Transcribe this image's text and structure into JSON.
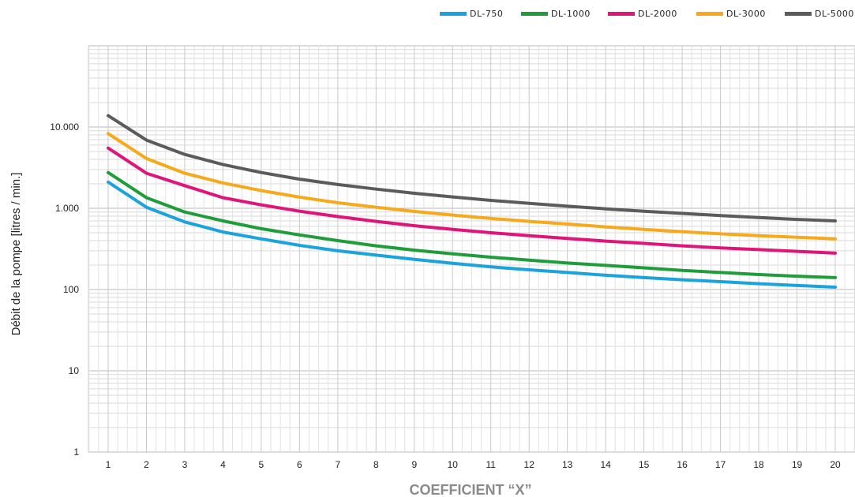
{
  "chart_data": {
    "type": "line",
    "title": "",
    "xlabel": "COEFFICIENT “X”",
    "ylabel": "Débit de la pompe [litres / min.]",
    "y_scale": "log",
    "ylim": [
      1,
      100000
    ],
    "xlim": [
      1,
      20
    ],
    "grid": true,
    "legend_position": "top-right",
    "x": [
      1,
      2,
      3,
      4,
      5,
      6,
      7,
      8,
      9,
      10,
      11,
      12,
      13,
      14,
      15,
      16,
      17,
      18,
      19,
      20
    ],
    "x_tick_labels": [
      "1",
      "2",
      "3",
      "4",
      "5",
      "6",
      "7",
      "8",
      "9",
      "10",
      "11",
      "12",
      "13",
      "14",
      "15",
      "16",
      "17",
      "18",
      "19",
      "20"
    ],
    "y_ticks": [
      1,
      10,
      100,
      1000,
      10000
    ],
    "y_tick_labels": [
      "1",
      "10",
      "100",
      "1.000",
      "10.000"
    ],
    "series": [
      {
        "name": "DL-750",
        "color": "#1aa3dc",
        "values": [
          2100,
          1030,
          680,
          510,
          420,
          350,
          300,
          265,
          235,
          210,
          190,
          175,
          162,
          150,
          140,
          132,
          125,
          118,
          112,
          107
        ]
      },
      {
        "name": "DL-1000",
        "color": "#1f9d3a",
        "values": [
          2750,
          1350,
          900,
          700,
          560,
          470,
          400,
          345,
          305,
          275,
          250,
          230,
          212,
          198,
          185,
          172,
          162,
          153,
          146,
          140
        ]
      },
      {
        "name": "DL-2000",
        "color": "#e0157a",
        "values": [
          5500,
          2700,
          1900,
          1350,
          1100,
          920,
          790,
          690,
          610,
          550,
          500,
          460,
          425,
          395,
          370,
          345,
          325,
          310,
          295,
          280
        ]
      },
      {
        "name": "DL-3000",
        "color": "#f6a91b",
        "values": [
          8300,
          4100,
          2700,
          2050,
          1650,
          1370,
          1170,
          1030,
          915,
          825,
          750,
          690,
          640,
          590,
          550,
          515,
          485,
          460,
          440,
          420
        ]
      },
      {
        "name": "DL-5000",
        "color": "#5b5b5b",
        "values": [
          13800,
          6900,
          4600,
          3450,
          2750,
          2280,
          1960,
          1720,
          1530,
          1380,
          1250,
          1150,
          1060,
          985,
          920,
          865,
          815,
          770,
          730,
          700
        ]
      }
    ]
  }
}
